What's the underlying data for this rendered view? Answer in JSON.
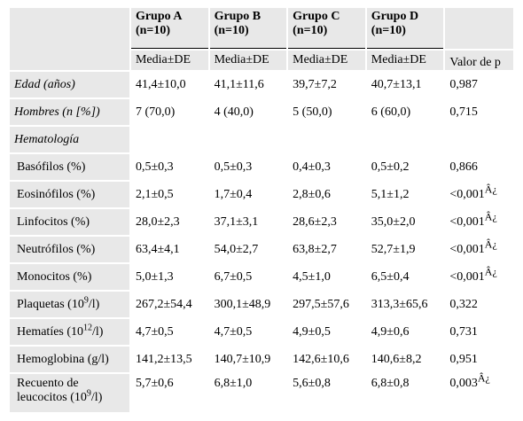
{
  "header": {
    "groups": [
      {
        "name": "Grupo A",
        "n": "(n=10)"
      },
      {
        "name": "Grupo B",
        "n": "(n=10)"
      },
      {
        "name": "Grupo C",
        "n": "(n=10)"
      },
      {
        "name": "Grupo D",
        "n": "(n=10)"
      }
    ],
    "stat_label": "Media±DE",
    "pvalue_label": "Valor de p"
  },
  "rows": [
    {
      "label": "Edad (años)",
      "values": [
        "41,4±10,0",
        "41,1±11,6",
        "39,7±7,2",
        "40,7±13,1"
      ],
      "p": "0,987"
    },
    {
      "label": "Hombres (n [%])",
      "values": [
        "7 (70,0)",
        "4 (40,0)",
        "5 (50,0)",
        "6 (60,0)"
      ],
      "p": "0,715"
    },
    {
      "label": "Hematología",
      "values": [
        "",
        "",
        "",
        ""
      ],
      "p": ""
    },
    {
      "label": "Basófilos (%)",
      "values": [
        "0,5±0,3",
        "0,5±0,3",
        "0,4±0,3",
        "0,5±0,2"
      ],
      "p": "0,866"
    },
    {
      "label": "Eosinófilos (%)",
      "values": [
        "2,1±0,5",
        "1,7±0,4",
        "2,8±0,6",
        "5,1±1,2"
      ],
      "p": "<0,001",
      "p_mark": "Â¿"
    },
    {
      "label": "Linfocitos (%)",
      "values": [
        "28,0±2,3",
        "37,1±3,1",
        "28,6±2,3",
        "35,0±2,0"
      ],
      "p": "<0,001",
      "p_mark": "Â¿"
    },
    {
      "label": "Neutrófilos (%)",
      "values": [
        "63,4±4,1",
        "54,0±2,7",
        "63,8±2,7",
        "52,7±1,9"
      ],
      "p": "<0,001",
      "p_mark": "Â¿"
    },
    {
      "label": "Monocitos (%)",
      "values": [
        "5,0±1,3",
        "6,7±0,5",
        "4,5±1,0",
        "6,5±0,4"
      ],
      "p": "<0,001",
      "p_mark": "Â¿"
    },
    {
      "label_pre": "Plaquetas (10",
      "label_sup": "9",
      "label_post": "/l)",
      "values": [
        "267,2±54,4",
        "300,1±48,9",
        "297,5±57,6",
        "313,3±65,6"
      ],
      "p": "0,322"
    },
    {
      "label_pre": "Hematíes (10",
      "label_sup": "12",
      "label_post": "/l)",
      "values": [
        "4,7±0,5",
        "4,7±0,5",
        "4,9±0,5",
        "4,9±0,6"
      ],
      "p": "0,731"
    },
    {
      "label": "Hemoglobina (g/l)",
      "values": [
        "141,2±13,5",
        "140,7±10,9",
        "142,6±10,6",
        "140,6±8,2"
      ],
      "p": "0,951"
    },
    {
      "label_pre": "Recuento de leucocitos (10",
      "label_sup": "9",
      "label_post": "/l)",
      "values": [
        "5,7±0,6",
        "6,8±1,0",
        "5,6±0,8",
        "6,8±0,8"
      ],
      "p": "0,003",
      "p_mark": "Â¿"
    }
  ]
}
